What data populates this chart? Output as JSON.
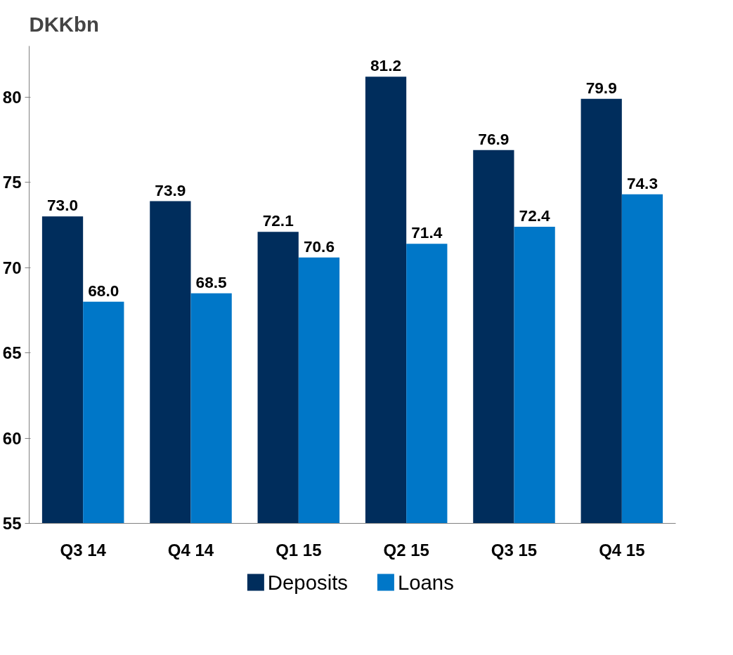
{
  "chart_data": {
    "type": "bar",
    "ylabel": "DKKbn",
    "categories": [
      "Q3 14",
      "Q4 14",
      "Q1 15",
      "Q2 15",
      "Q3 15",
      "Q4 15"
    ],
    "series": [
      {
        "name": "Deposits",
        "color": "#002d5c",
        "values": [
          73.0,
          73.9,
          72.1,
          81.2,
          76.9,
          79.9
        ],
        "value_labels": [
          "73.0",
          "73.9",
          "72.1",
          "81.2",
          "76.9",
          "79.9"
        ]
      },
      {
        "name": "Loans",
        "color": "#0077c8",
        "values": [
          68.0,
          68.5,
          70.6,
          71.4,
          72.4,
          74.3
        ],
        "value_labels": [
          "68.0",
          "68.5",
          "70.6",
          "71.4",
          "72.4",
          "74.3"
        ]
      }
    ],
    "ylim": [
      55,
      83
    ],
    "yticks": [
      55,
      60,
      65,
      70,
      75,
      80
    ],
    "grid": false,
    "legend": "bottom"
  }
}
